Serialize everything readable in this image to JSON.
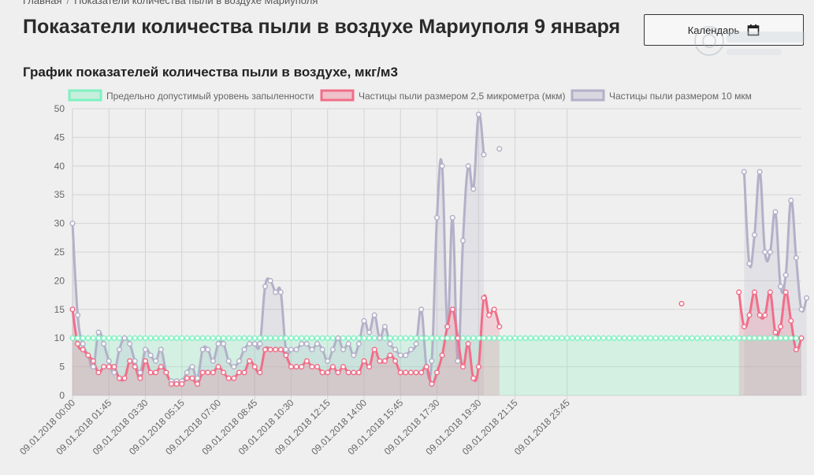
{
  "breadcrumb": {
    "home": "Главная",
    "separator": "/",
    "current": "Показатели количества пыли в воздухе Мариуполя"
  },
  "page_title": "Показатели количества пыли в воздухе Мариуполя 9 января",
  "calendar_button": {
    "label": "Календарь",
    "icon": "calendar-icon"
  },
  "chart_data": {
    "type": "line",
    "title": "График показателей количества пыли в воздухе, мкг/м3",
    "xlabel": "",
    "ylabel": "",
    "ylim": [
      0,
      50
    ],
    "yticks": [
      0,
      5,
      10,
      15,
      20,
      25,
      30,
      35,
      40,
      45,
      50
    ],
    "grid": true,
    "legend_position": "top",
    "x_interval_minutes": 15,
    "x_start": "09.01.2018 00:00",
    "x_end": "09.01.2018 23:45",
    "x_tick_labels": [
      "09.01.2018 00:00",
      "09.01.2018 01:45",
      "09.01.2018 03:30",
      "09.01.2018 05:15",
      "09.01.2018 07:00",
      "09.01.2018 08:45",
      "09.01.2018 10:30",
      "09.01.2018 12:15",
      "09.01.2018 14:00",
      "09.01.2018 15:45",
      "09.01.2018 17:30",
      "09.01.2018 19:30",
      "09.01.2018 21:15",
      "09.01.2018 23:45"
    ],
    "series": [
      {
        "name": "Предельно допустимый уровень запыленности",
        "color": "#7ef2c0",
        "fill": "rgba(126,242,192,0.25)",
        "constant": 10
      },
      {
        "name": "Частицы пыли размером 2,5 микрометра (мкм)",
        "color": "#f16e88",
        "fill": "rgba(241,110,136,0.22)",
        "values": [
          15,
          9,
          8,
          7,
          6,
          4,
          5,
          5,
          5,
          3,
          3,
          6,
          5,
          3,
          6,
          4,
          4,
          5,
          4,
          2,
          2,
          2,
          3,
          3,
          2,
          4,
          4,
          4,
          5,
          4,
          3,
          3,
          4,
          4,
          6,
          5,
          4,
          8,
          8,
          8,
          8,
          7,
          5,
          5,
          5,
          6,
          5,
          5,
          4,
          4,
          5,
          4,
          5,
          4,
          4,
          4,
          6,
          5,
          8,
          6,
          6,
          7,
          6,
          4,
          4,
          4,
          4,
          4,
          5,
          2,
          4,
          7,
          12,
          15,
          10,
          5,
          9,
          3,
          5,
          17,
          14,
          15,
          12,
          null,
          null,
          null,
          null,
          null,
          null,
          null,
          null,
          null,
          null,
          null,
          null,
          null,
          null,
          null,
          null,
          null,
          null,
          null,
          null,
          null,
          null,
          null,
          null,
          null,
          null,
          null,
          null,
          null,
          null,
          null,
          null,
          null,
          null,
          16,
          null,
          null,
          null,
          null,
          null,
          null,
          null,
          null,
          null,
          null,
          18,
          12,
          14,
          18,
          14,
          14,
          18,
          11,
          12,
          18,
          13,
          8,
          10
        ]
      },
      {
        "name": "Частицы пыли размером 10 мкм",
        "color": "#b3b0c8",
        "fill": "rgba(179,176,200,0.22)",
        "values": [
          30,
          14,
          9,
          7,
          5,
          11,
          9,
          6,
          4,
          8,
          10,
          9,
          6,
          4,
          8,
          7,
          6,
          8,
          4,
          2.5,
          2.5,
          2.5,
          4,
          5,
          3,
          8,
          8,
          6,
          9,
          9,
          6,
          5,
          6,
          8,
          9,
          9,
          9,
          19,
          20,
          18,
          18,
          8,
          8,
          8,
          9,
          9,
          8,
          9,
          8,
          6,
          8,
          10,
          8,
          9,
          7,
          9,
          13,
          11,
          14,
          10,
          12,
          9,
          8,
          7,
          7,
          8,
          9,
          15,
          5,
          6,
          31,
          40,
          12,
          31,
          6,
          27,
          40,
          36,
          49,
          42,
          null,
          null,
          43,
          null,
          null,
          null,
          null,
          null,
          null,
          null,
          null,
          null,
          null,
          null,
          null,
          null,
          null,
          null,
          null,
          null,
          null,
          null,
          null,
          null,
          null,
          null,
          null,
          null,
          null,
          null,
          null,
          null,
          null,
          null,
          null,
          null,
          null,
          null,
          null,
          null,
          null,
          null,
          null,
          null,
          null,
          null,
          null,
          null,
          null,
          39,
          23,
          28,
          39,
          25,
          25,
          32,
          19,
          21,
          34,
          24,
          15,
          17
        ]
      }
    ]
  }
}
